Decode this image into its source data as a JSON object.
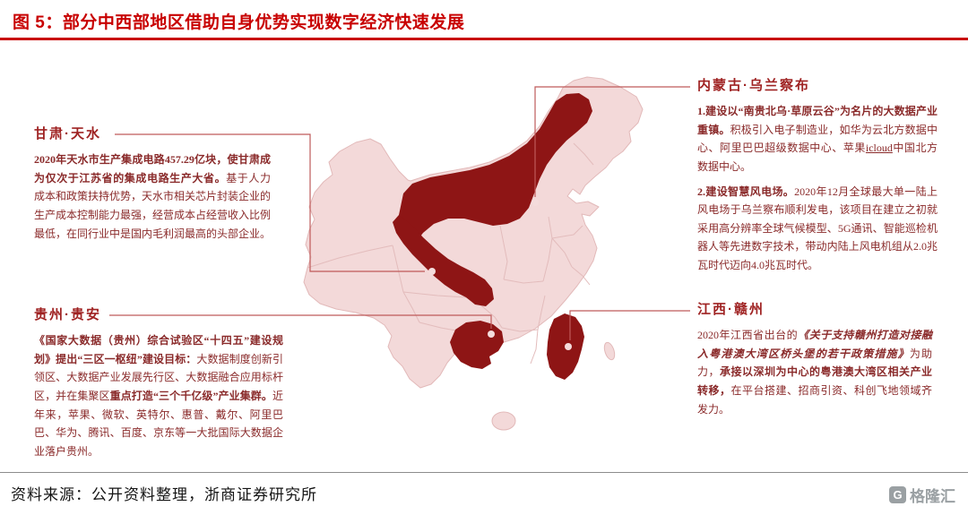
{
  "title": "图 5：部分中西部地区借助自身优势实现数字经济快速发展",
  "colors": {
    "title_red": "#c80000",
    "map_base": "#f3d9d9",
    "map_border": "#e2b9b9",
    "highlight_red": "#8e1515",
    "callout_text": "#8a2a2a",
    "connector": "#bf5a5a"
  },
  "map": {
    "highlighted_regions": [
      "内蒙古",
      "甘肃",
      "贵州",
      "江西"
    ]
  },
  "callouts": [
    {
      "region": "甘肃·天水",
      "paragraphs": [
        [
          {
            "t": "2020年天水市生产集成电路457.29亿块，使甘肃成为仅次于江苏省的集成电路生产大省。",
            "b": true
          },
          {
            "t": "基于人力成本和政策扶持优势，天水市相关芯片封装企业的生产成本控制能力最强，经营成本占经营收入比例最低，在同行业中是国内毛利润最高的头部企业。",
            "b": false
          }
        ]
      ]
    },
    {
      "region": "贵州·贵安",
      "paragraphs": [
        [
          {
            "t": "《国家大数据（贵州）综合试验区“十四五”建设规划》提出“三区一枢纽”建设目标：",
            "b": true
          },
          {
            "t": "大数据制度创新引领区、大数据产业发展先行区、大数据融合应用标杆区，并在集聚区",
            "b": false
          },
          {
            "t": "重点打造“三个千亿级”产业集群。",
            "b": true
          },
          {
            "t": "近年来，苹果、微软、英特尔、惠普、戴尔、阿里巴巴、华为、腾讯、百度、京东等一大批国际大数据企业落户贵州。",
            "b": false
          }
        ]
      ]
    },
    {
      "region": "内蒙古·乌兰察布",
      "paragraphs": [
        [
          {
            "t": "1.建设以“南贵北乌·草原云谷”为名片的大数据产业重镇。",
            "b": true
          },
          {
            "t": "积极引入电子制造业，如华为云北方数据中心、阿里巴巴超级数据中心、苹果",
            "b": false
          },
          {
            "t": "icloud",
            "b": false,
            "u": true
          },
          {
            "t": "中国北方数据中心。",
            "b": false
          }
        ],
        [
          {
            "t": "2.建设智慧风电场。",
            "b": true
          },
          {
            "t": "2020年12月全球最大单一陆上风电场于乌兰察布顺利发电，该项目在建立之初就采用高分辨率全球气候模型、5G通讯、智能巡检机器人等先进数字技术，带动内陆上风电机组从2.0兆瓦时代迈向4.0兆瓦时代。",
            "b": false
          }
        ]
      ]
    },
    {
      "region": "江西·赣州",
      "paragraphs": [
        [
          {
            "t": "2020年江西省出台的",
            "b": false
          },
          {
            "t": "《关于支持赣州打造对接融入粤港澳大湾区桥头堡的若干政策措施》",
            "b": true,
            "i": true
          },
          {
            "t": "为助力，",
            "b": false
          },
          {
            "t": "承接以深圳为中心的粤港澳大湾区相关产业转移，",
            "b": true
          },
          {
            "t": "在平台搭建、招商引资、科创飞地领域齐发力。",
            "b": false
          }
        ]
      ]
    }
  ],
  "footer": {
    "source": "资料来源：公开资料整理，浙商证券研究所",
    "logo_icon": "G",
    "logo_text": "格隆汇"
  }
}
